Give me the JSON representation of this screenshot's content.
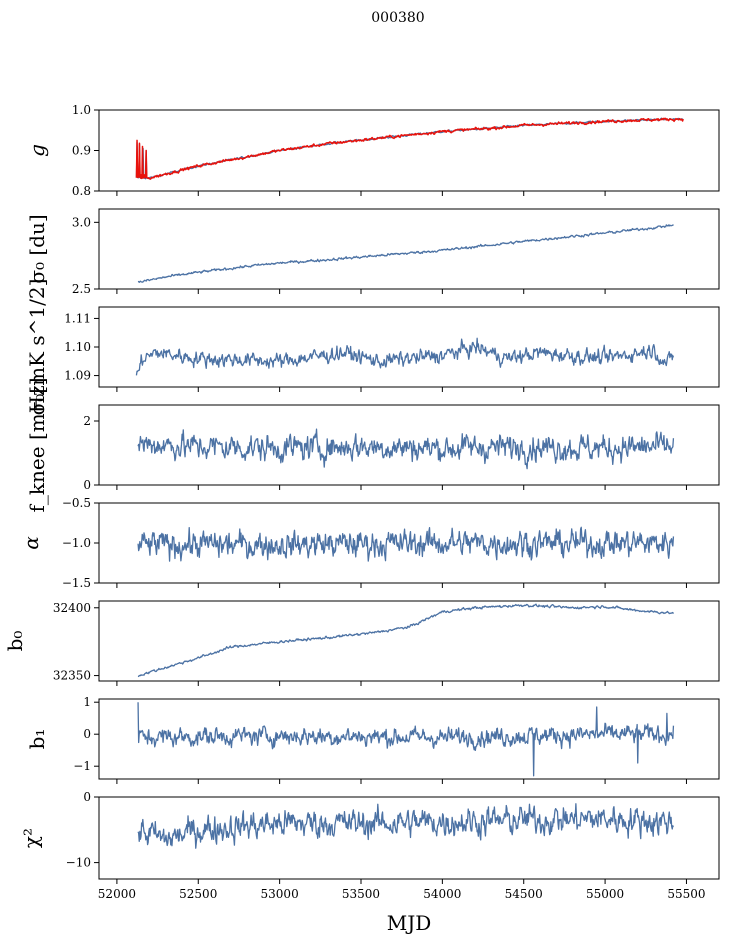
{
  "figure": {
    "title": "000380",
    "xlabel": "MJD"
  },
  "chart_data": [
    {
      "type": "line",
      "id": "g",
      "ylabel": "g",
      "xlim": [
        51890,
        55700
      ],
      "ylim": [
        0.8,
        1.0
      ],
      "yticks": [
        0.8,
        0.9,
        1.0
      ],
      "ytick_labels": [
        "0.8",
        "0.9",
        "1.0"
      ],
      "series": [
        {
          "name": "g",
          "color": "#4c72a4",
          "trend": [
            [
              52120,
              0.832
            ],
            [
              52200,
              0.832
            ],
            [
              52300,
              0.842
            ],
            [
              52500,
              0.862
            ],
            [
              52700,
              0.877
            ],
            [
              53000,
              0.9
            ],
            [
              53300,
              0.917
            ],
            [
              53600,
              0.93
            ],
            [
              54000,
              0.947
            ],
            [
              54300,
              0.955
            ],
            [
              54500,
              0.962
            ],
            [
              54800,
              0.968
            ],
            [
              55000,
              0.972
            ],
            [
              55200,
              0.975
            ],
            [
              55400,
              0.977
            ],
            [
              55480,
              0.978
            ]
          ],
          "noise": 0.001,
          "spikes": [
            [
              52125,
              0.92
            ],
            [
              52140,
              0.915
            ],
            [
              52160,
              0.905
            ],
            [
              52180,
              0.9
            ]
          ]
        },
        {
          "name": "g-fit",
          "color": "#e8120c",
          "trend": [
            [
              52120,
              0.832
            ],
            [
              52200,
              0.832
            ],
            [
              52300,
              0.842
            ],
            [
              52500,
              0.862
            ],
            [
              52700,
              0.877
            ],
            [
              53000,
              0.9
            ],
            [
              53300,
              0.917
            ],
            [
              53600,
              0.93
            ],
            [
              54000,
              0.947
            ],
            [
              54300,
              0.955
            ],
            [
              54500,
              0.962
            ],
            [
              54800,
              0.968
            ],
            [
              55000,
              0.972
            ],
            [
              55200,
              0.975
            ],
            [
              55400,
              0.977
            ],
            [
              55480,
              0.978
            ]
          ],
          "noise": 0.0015,
          "spikes": [
            [
              52122,
              0.925
            ],
            [
              52130,
              0.84
            ],
            [
              52138,
              0.918
            ],
            [
              52150,
              0.84
            ],
            [
              52158,
              0.91
            ],
            [
              52170,
              0.84
            ],
            [
              52178,
              0.9
            ]
          ]
        }
      ]
    },
    {
      "type": "line",
      "id": "sigma0_du",
      "ylabel": "σ₀ [du]",
      "xlim": [
        51890,
        55700
      ],
      "ylim": [
        2.5,
        3.1
      ],
      "yticks": [
        2.5,
        3.0
      ],
      "ytick_labels": [
        "2.5",
        "3.0"
      ],
      "series": [
        {
          "name": "sigma0",
          "color": "#4c72a4",
          "trend": [
            [
              52130,
              2.55
            ],
            [
              52300,
              2.59
            ],
            [
              52500,
              2.625
            ],
            [
              52800,
              2.67
            ],
            [
              53000,
              2.695
            ],
            [
              53300,
              2.72
            ],
            [
              53600,
              2.75
            ],
            [
              54000,
              2.79
            ],
            [
              54300,
              2.83
            ],
            [
              54600,
              2.87
            ],
            [
              55000,
              2.92
            ],
            [
              55300,
              2.96
            ],
            [
              55420,
              2.98
            ]
          ],
          "noise": 0.004
        }
      ]
    },
    {
      "type": "line",
      "id": "sigma0_mK",
      "ylabel": "σ₀[mK s^1/2]",
      "xlim": [
        51890,
        55700
      ],
      "ylim": [
        1.086,
        1.114
      ],
      "yticks": [
        1.09,
        1.1,
        1.11
      ],
      "ytick_labels": [
        "1.09",
        "1.10",
        "1.11"
      ],
      "series": [
        {
          "name": "sigma0-mK",
          "color": "#4c72a4",
          "trend": [
            [
              52120,
              1.09
            ],
            [
              52160,
              1.096
            ],
            [
              52250,
              1.098
            ],
            [
              52500,
              1.096
            ],
            [
              52800,
              1.0955
            ],
            [
              53000,
              1.095
            ],
            [
              53400,
              1.098
            ],
            [
              53600,
              1.095
            ],
            [
              54000,
              1.097
            ],
            [
              54200,
              1.1
            ],
            [
              54400,
              1.096
            ],
            [
              54600,
              1.098
            ],
            [
              55000,
              1.096
            ],
            [
              55300,
              1.099
            ],
            [
              55380,
              1.094
            ],
            [
              55420,
              1.097
            ]
          ],
          "noise": 0.0011
        }
      ]
    },
    {
      "type": "line",
      "id": "fknee",
      "ylabel": "f_knee [mHz]",
      "xlim": [
        51890,
        55700
      ],
      "ylim": [
        0,
        2.5
      ],
      "yticks": [
        0,
        2
      ],
      "ytick_labels": [
        "0",
        "2"
      ],
      "series": [
        {
          "name": "fknee",
          "color": "#4c72a4",
          "trend": [
            [
              52130,
              1.3
            ],
            [
              52500,
              1.2
            ],
            [
              53000,
              1.15
            ],
            [
              53500,
              1.2
            ],
            [
              54000,
              1.15
            ],
            [
              54500,
              1.2
            ],
            [
              55000,
              1.15
            ],
            [
              55420,
              1.2
            ]
          ],
          "noise": 0.17
        }
      ]
    },
    {
      "type": "line",
      "id": "alpha",
      "ylabel": "α",
      "xlim": [
        51890,
        55700
      ],
      "ylim": [
        -1.5,
        -0.5
      ],
      "yticks": [
        -1.5,
        -1.0,
        -0.5
      ],
      "ytick_labels": [
        "−1.5",
        "−1.0",
        "−0.5"
      ],
      "series": [
        {
          "name": "alpha",
          "color": "#4c72a4",
          "trend": [
            [
              52130,
              -1.02
            ],
            [
              53000,
              -1.02
            ],
            [
              54000,
              -1.0
            ],
            [
              55000,
              -1.0
            ],
            [
              55420,
              -1.0
            ]
          ],
          "noise": 0.07
        }
      ]
    },
    {
      "type": "line",
      "id": "b0",
      "ylabel": "b₀",
      "xlim": [
        51890,
        55700
      ],
      "ylim": [
        32346,
        32405
      ],
      "yticks": [
        32350,
        32400
      ],
      "ytick_labels": [
        "32350",
        "32400"
      ],
      "series": [
        {
          "name": "b0",
          "color": "#4c72a4",
          "trend": [
            [
              52130,
              32350
            ],
            [
              52300,
              32356
            ],
            [
              52500,
              32363
            ],
            [
              52700,
              32371
            ],
            [
              53000,
              32375
            ],
            [
              53300,
              32378
            ],
            [
              53600,
              32382
            ],
            [
              53800,
              32386
            ],
            [
              54000,
              32397
            ],
            [
              54200,
              32400
            ],
            [
              54500,
              32402
            ],
            [
              54800,
              32400
            ],
            [
              55000,
              32401
            ],
            [
              55200,
              32398
            ],
            [
              55420,
              32396
            ]
          ],
          "noise": 0.4
        }
      ]
    },
    {
      "type": "line",
      "id": "b1",
      "ylabel": "b₁",
      "xlim": [
        51890,
        55700
      ],
      "ylim": [
        -1.4,
        1.1
      ],
      "yticks": [
        -1,
        0,
        1
      ],
      "ytick_labels": [
        "−1",
        "0",
        "1"
      ],
      "series": [
        {
          "name": "b1",
          "color": "#4c72a4",
          "trend": [
            [
              52130,
              -0.1
            ],
            [
              53000,
              -0.05
            ],
            [
              54000,
              -0.1
            ],
            [
              55000,
              0.0
            ],
            [
              55420,
              0.0
            ]
          ],
          "noise": 0.12,
          "spikes": [
            [
              52130,
              1.0
            ],
            [
              54560,
              -1.3
            ],
            [
              54950,
              0.85
            ],
            [
              55200,
              -0.9
            ],
            [
              55380,
              0.65
            ]
          ]
        }
      ]
    },
    {
      "type": "line",
      "id": "chi2",
      "ylabel": "χ²",
      "xlim": [
        51890,
        55700
      ],
      "ylim": [
        -12.5,
        0
      ],
      "yticks": [
        -10,
        0
      ],
      "ytick_labels": [
        "−10",
        "0"
      ],
      "series": [
        {
          "name": "chi2",
          "color": "#4c72a4",
          "trend": [
            [
              52130,
              -5.0
            ],
            [
              52300,
              -6.5
            ],
            [
              52500,
              -5.0
            ],
            [
              53000,
              -4.0
            ],
            [
              53500,
              -4.0
            ],
            [
              54000,
              -3.8
            ],
            [
              54500,
              -3.5
            ],
            [
              55000,
              -3.3
            ],
            [
              55420,
              -3.8
            ]
          ],
          "noise": 0.9
        }
      ]
    },
    {
      "type": "axis",
      "id": "x-axis",
      "xticks": [
        52000,
        52500,
        53000,
        53500,
        54000,
        54500,
        55000,
        55500
      ],
      "xtick_labels": [
        "52000",
        "52500",
        "53000",
        "53500",
        "54000",
        "54500",
        "55000",
        "55500"
      ]
    }
  ]
}
